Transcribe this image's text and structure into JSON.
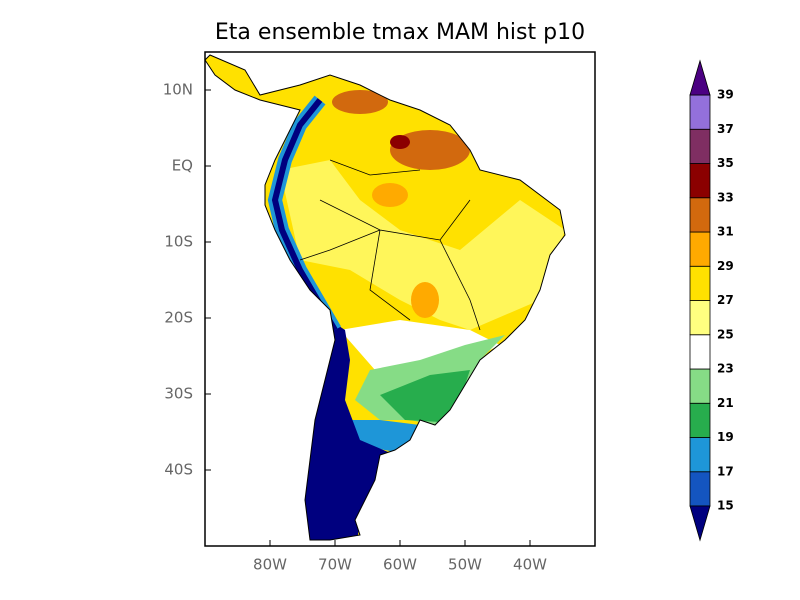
{
  "title": "Eta ensemble tmax MAM hist p10",
  "axes": {
    "xlim": [
      -90,
      -30
    ],
    "ylim": [
      -50,
      15
    ],
    "xticks": [
      {
        "value": -80,
        "label": "80W"
      },
      {
        "value": -70,
        "label": "70W"
      },
      {
        "value": -60,
        "label": "60W"
      },
      {
        "value": -50,
        "label": "50W"
      },
      {
        "value": -40,
        "label": "40W"
      }
    ],
    "yticks": [
      {
        "value": 10,
        "label": "10N"
      },
      {
        "value": 0,
        "label": "EQ"
      },
      {
        "value": -10,
        "label": "10S"
      },
      {
        "value": -20,
        "label": "20S"
      },
      {
        "value": -30,
        "label": "30S"
      },
      {
        "value": -40,
        "label": "40S"
      }
    ]
  },
  "colorbar": {
    "levels": [
      15,
      17,
      19,
      21,
      23,
      25,
      27,
      29,
      31,
      33,
      35,
      37,
      39
    ],
    "colors": [
      "#00007f",
      "#1455c0",
      "#1e96d8",
      "#27ad4d",
      "#86dc86",
      "#ffffff",
      "#ffff80",
      "#ffe100",
      "#ffaa00",
      "#d2690e",
      "#8b0000",
      "#7f2e62",
      "#9370db",
      "#4b0082"
    ]
  }
}
